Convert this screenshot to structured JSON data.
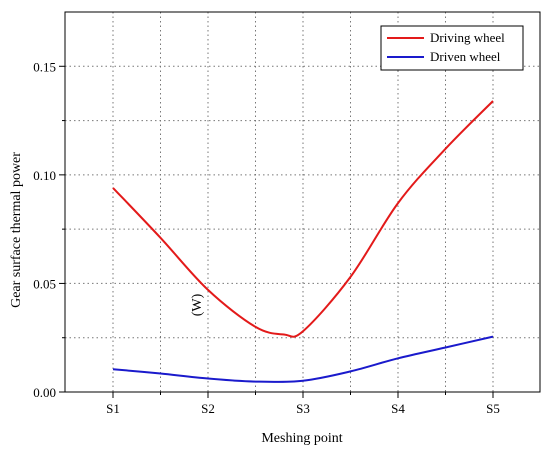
{
  "chart_data": {
    "type": "line",
    "xlabel": "Meshing point",
    "ylabel": "Gear surface thermal power",
    "ylabel_unit_fragment": "(W)",
    "categories": [
      "S1",
      "S2",
      "S3",
      "S4",
      "S5"
    ],
    "ylim": [
      0,
      0.175
    ],
    "yticks": [
      0.0,
      0.05,
      0.1,
      0.15
    ],
    "ytick_labels": [
      "0.00",
      "0.05",
      "0.10",
      "0.15"
    ],
    "grid": true,
    "legend_position": "top-right",
    "series": [
      {
        "name": "Driving wheel",
        "color": "#e31a1a",
        "x": [
          0,
          0.5,
          1,
          1.5,
          1.8,
          2,
          2.5,
          3,
          3.5,
          4
        ],
        "values": [
          0.094,
          0.071,
          0.047,
          0.03,
          0.0265,
          0.028,
          0.053,
          0.087,
          0.112,
          0.134
        ]
      },
      {
        "name": "Driven wheel",
        "color": "#1a1acc",
        "x": [
          0,
          0.5,
          1,
          1.5,
          2,
          2.5,
          3,
          3.5,
          4
        ],
        "values": [
          0.0105,
          0.0085,
          0.0062,
          0.0048,
          0.0052,
          0.0095,
          0.0155,
          0.0205,
          0.0255
        ]
      }
    ]
  }
}
